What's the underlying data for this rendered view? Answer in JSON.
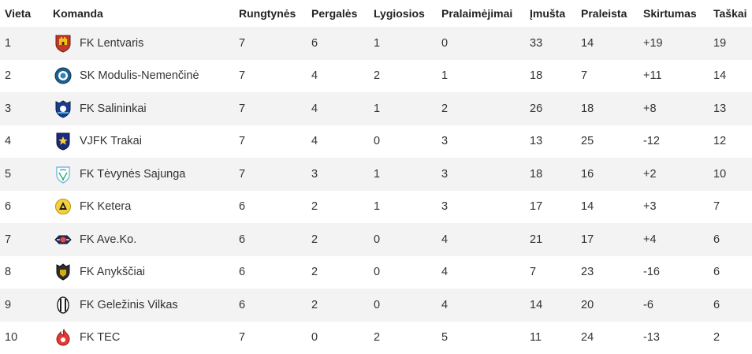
{
  "table": {
    "headers": {
      "position": "Vieta",
      "team": "Komanda",
      "played": "Rungtynės",
      "won": "Pergalės",
      "drawn": "Lygiosios",
      "lost": "Pralaimėjimai",
      "goals_for": "Įmušta",
      "goals_against": "Praleista",
      "goal_diff": "Skirtumas",
      "points": "Taškai"
    },
    "rows": [
      {
        "position": "1",
        "team": "FK Lentvaris",
        "logo": "lentvaris-crest-icon",
        "played": "7",
        "won": "6",
        "drawn": "1",
        "lost": "0",
        "goals_for": "33",
        "goals_against": "14",
        "goal_diff": "+19",
        "points": "19"
      },
      {
        "position": "2",
        "team": "SK Modulis-Nemenčinė",
        "logo": "modulis-crest-icon",
        "played": "7",
        "won": "4",
        "drawn": "2",
        "lost": "1",
        "goals_for": "18",
        "goals_against": "7",
        "goal_diff": "+11",
        "points": "14"
      },
      {
        "position": "3",
        "team": "FK Salininkai",
        "logo": "salininkai-crest-icon",
        "played": "7",
        "won": "4",
        "drawn": "1",
        "lost": "2",
        "goals_for": "26",
        "goals_against": "18",
        "goal_diff": "+8",
        "points": "13"
      },
      {
        "position": "4",
        "team": "VJFK Trakai",
        "logo": "trakai-crest-icon",
        "played": "7",
        "won": "4",
        "drawn": "0",
        "lost": "3",
        "goals_for": "13",
        "goals_against": "25",
        "goal_diff": "-12",
        "points": "12"
      },
      {
        "position": "5",
        "team": "FK Tėvynės Sajunga",
        "logo": "tevynes-sajunga-crest-icon",
        "played": "7",
        "won": "3",
        "drawn": "1",
        "lost": "3",
        "goals_for": "18",
        "goals_against": "16",
        "goal_diff": "+2",
        "points": "10"
      },
      {
        "position": "6",
        "team": "FK Ketera",
        "logo": "ketera-crest-icon",
        "played": "6",
        "won": "2",
        "drawn": "1",
        "lost": "3",
        "goals_for": "17",
        "goals_against": "14",
        "goal_diff": "+3",
        "points": "7"
      },
      {
        "position": "7",
        "team": "FK Ave.Ko.",
        "logo": "aveko-crest-icon",
        "played": "6",
        "won": "2",
        "drawn": "0",
        "lost": "4",
        "goals_for": "21",
        "goals_against": "17",
        "goal_diff": "+4",
        "points": "6"
      },
      {
        "position": "8",
        "team": "FK Anykščiai",
        "logo": "anyksciai-crest-icon",
        "played": "6",
        "won": "2",
        "drawn": "0",
        "lost": "4",
        "goals_for": "7",
        "goals_against": "23",
        "goal_diff": "-16",
        "points": "6"
      },
      {
        "position": "9",
        "team": "FK Geležinis Vilkas",
        "logo": "gelezinis-vilkas-crest-icon",
        "played": "6",
        "won": "2",
        "drawn": "0",
        "lost": "4",
        "goals_for": "14",
        "goals_against": "20",
        "goal_diff": "-6",
        "points": "6"
      },
      {
        "position": "10",
        "team": "FK TEC",
        "logo": "tec-crest-icon",
        "played": "7",
        "won": "0",
        "drawn": "2",
        "lost": "5",
        "goals_for": "11",
        "goals_against": "24",
        "goal_diff": "-13",
        "points": "2"
      }
    ]
  },
  "colors": {
    "row_stripe": "#f3f3f3",
    "row_plain": "#ffffff",
    "text": "#333333",
    "header_text": "#222222"
  }
}
